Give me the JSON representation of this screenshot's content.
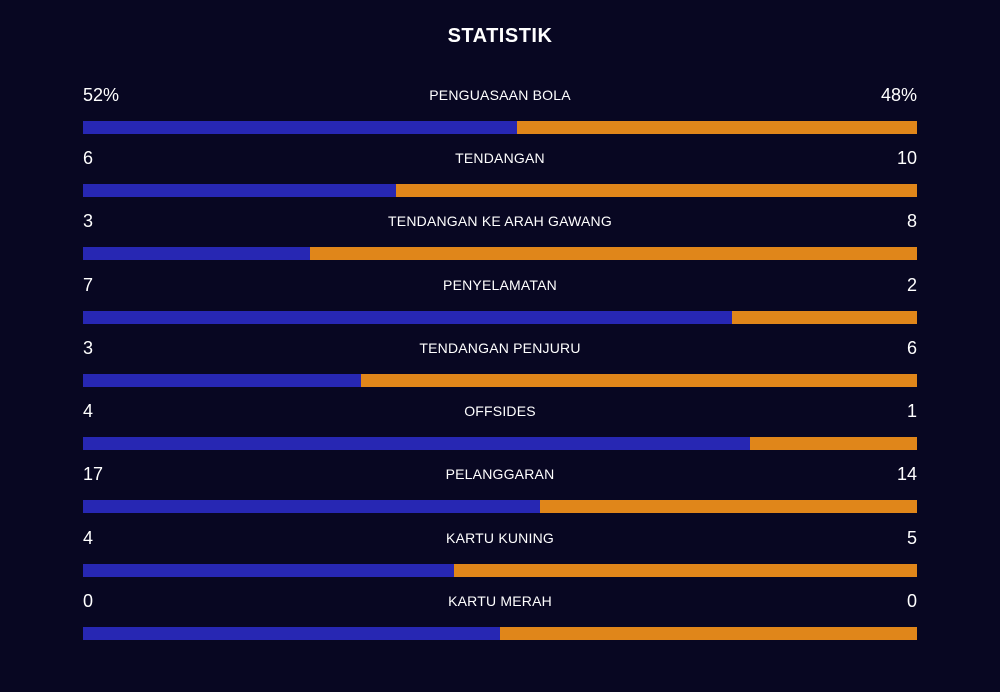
{
  "title": "STATISTIK",
  "colors": {
    "background": "#080722",
    "home": "#2727b3",
    "away": "#e0861a"
  },
  "stats": [
    {
      "label": "PENGUASAAN BOLA",
      "left": "52%",
      "right": "48%",
      "left_share": 0.52
    },
    {
      "label": "TENDANGAN",
      "left": "6",
      "right": "10",
      "left_share": 0.375
    },
    {
      "label": "TENDANGAN KE ARAH GAWANG",
      "left": "3",
      "right": "8",
      "left_share": 0.2727
    },
    {
      "label": "PENYELAMATAN",
      "left": "7",
      "right": "2",
      "left_share": 0.7778
    },
    {
      "label": "TENDANGAN PENJURU",
      "left": "3",
      "right": "6",
      "left_share": 0.3333
    },
    {
      "label": "OFFSIDES",
      "left": "4",
      "right": "1",
      "left_share": 0.8
    },
    {
      "label": "PELANGGARAN",
      "left": "17",
      "right": "14",
      "left_share": 0.5484
    },
    {
      "label": "KARTU KUNING",
      "left": "4",
      "right": "5",
      "left_share": 0.4444
    },
    {
      "label": "KARTU MERAH",
      "left": "0",
      "right": "0",
      "left_share": 0.5
    }
  ]
}
